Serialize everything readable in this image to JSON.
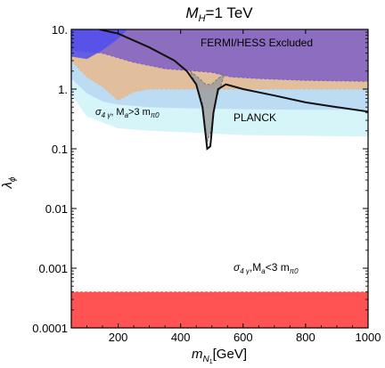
{
  "chart_data": {
    "type": "area",
    "title_main": "M",
    "title_sub": "H",
    "title_rest": "=1 TeV",
    "xlabel_main": "m",
    "xlabel_sub": "N",
    "xlabel_subsub": "1",
    "xlabel_unit": "[GeV]",
    "ylabel_main": "λ",
    "ylabel_sub": "ϕ",
    "xlim": [
      50,
      1000
    ],
    "ylim": [
      0.0001,
      10
    ],
    "yscale": "log",
    "xticks": [
      200,
      400,
      600,
      800,
      1000
    ],
    "xtick_labels": [
      "200",
      "400",
      "600",
      "800",
      "1000"
    ],
    "yticks": [
      10,
      1,
      0.1,
      0.01,
      0.001,
      0.0001
    ],
    "ytick_labels": [
      "10.",
      "1.",
      "0.1",
      "0.01",
      "0.001",
      "0.0001"
    ],
    "regions": [
      {
        "name": "light-cyan-band",
        "color": "#cff3f8",
        "upper": [
          [
            50,
            10
          ],
          [
            1000,
            10
          ]
        ],
        "lower": [
          [
            50,
            0.8
          ],
          [
            100,
            0.35
          ],
          [
            200,
            0.22
          ],
          [
            300,
            0.2
          ],
          [
            400,
            0.19
          ],
          [
            500,
            0.18
          ],
          [
            600,
            0.17
          ],
          [
            800,
            0.165
          ],
          [
            1000,
            0.16
          ]
        ]
      },
      {
        "name": "light-blue-band",
        "color": "#b7d7f3",
        "upper": [
          [
            50,
            10
          ],
          [
            1000,
            10
          ]
        ],
        "lower": [
          [
            50,
            1.5
          ],
          [
            100,
            0.85
          ],
          [
            150,
            0.62
          ],
          [
            200,
            0.55
          ],
          [
            300,
            0.5
          ],
          [
            400,
            0.48
          ],
          [
            600,
            0.46
          ],
          [
            800,
            0.45
          ],
          [
            1000,
            0.45
          ]
        ]
      },
      {
        "name": "sigma-4gamma-heavy",
        "color": "#e8b98c",
        "upper": [
          [
            50,
            10
          ],
          [
            1000,
            10
          ]
        ],
        "lower": [
          [
            50,
            3.0
          ],
          [
            100,
            1.6
          ],
          [
            150,
            1.1
          ],
          [
            200,
            0.65
          ],
          [
            250,
            0.9
          ],
          [
            300,
            1.0
          ],
          [
            400,
            1.0
          ],
          [
            500,
            1.0
          ],
          [
            600,
            1.0
          ],
          [
            800,
            1.0
          ],
          [
            1000,
            1.0
          ]
        ]
      },
      {
        "name": "fermi-hess-excluded",
        "color": "#7d5fc6",
        "upper": [
          [
            50,
            10
          ],
          [
            1000,
            10
          ]
        ],
        "lower": [
          [
            50,
            4.5
          ],
          [
            150,
            4.0
          ],
          [
            250,
            2.8
          ],
          [
            350,
            2.2
          ],
          [
            450,
            2.0
          ],
          [
            500,
            1.9
          ],
          [
            560,
            1.6
          ],
          [
            650,
            1.5
          ],
          [
            800,
            1.4
          ],
          [
            1000,
            1.35
          ]
        ]
      },
      {
        "name": "blue-top-region",
        "color": "#4f4ef0",
        "upper": [
          [
            50,
            10
          ],
          [
            230,
            10
          ]
        ],
        "lower": [
          [
            50,
            3.5
          ],
          [
            100,
            3.2
          ],
          [
            150,
            4.5
          ],
          [
            200,
            7.0
          ],
          [
            230,
            10
          ]
        ]
      },
      {
        "name": "sigma-4gamma-light",
        "color": "#ff4a4a",
        "upper": [
          [
            50,
            0.0004
          ],
          [
            1000,
            0.0004
          ]
        ],
        "lower": [
          [
            50,
            0.0001
          ],
          [
            1000,
            0.0001
          ]
        ]
      }
    ],
    "resonance_dip": {
      "color": "#9d9d9d",
      "upper": [
        [
          430,
          2.0
        ],
        [
          460,
          1.5
        ],
        [
          480,
          1.2
        ],
        [
          500,
          1.2
        ],
        [
          520,
          1.5
        ],
        [
          540,
          1.8
        ]
      ],
      "lower": [
        [
          430,
          2.0
        ],
        [
          450,
          1.2
        ],
        [
          470,
          0.6
        ],
        [
          485,
          0.13
        ],
        [
          495,
          0.18
        ],
        [
          510,
          0.6
        ],
        [
          530,
          1.2
        ],
        [
          540,
          1.8
        ]
      ]
    },
    "planck_curve": [
      [
        140,
        10
      ],
      [
        200,
        8.5
      ],
      [
        300,
        5.0
      ],
      [
        380,
        3.0
      ],
      [
        420,
        2.0
      ],
      [
        450,
        1.2
      ],
      [
        470,
        0.5
      ],
      [
        485,
        0.1
      ],
      [
        495,
        0.11
      ],
      [
        505,
        0.4
      ],
      [
        520,
        1.0
      ],
      [
        545,
        1.2
      ],
      [
        600,
        1.0
      ],
      [
        700,
        0.78
      ],
      [
        800,
        0.6
      ],
      [
        900,
        0.5
      ],
      [
        1000,
        0.42
      ]
    ],
    "annotations": {
      "fermi": "FERMI/HESS Excluded",
      "planck": "PLANCK",
      "heavy": "σ4 γ , Ma>3 mπ0",
      "light": "σ4 γ,Ma<3 mπ0"
    },
    "colors": {
      "planck_line": "#111111",
      "heavy_text": "#e8902e",
      "light_text": "#e01b1b",
      "fermi_text": "#555555"
    }
  }
}
